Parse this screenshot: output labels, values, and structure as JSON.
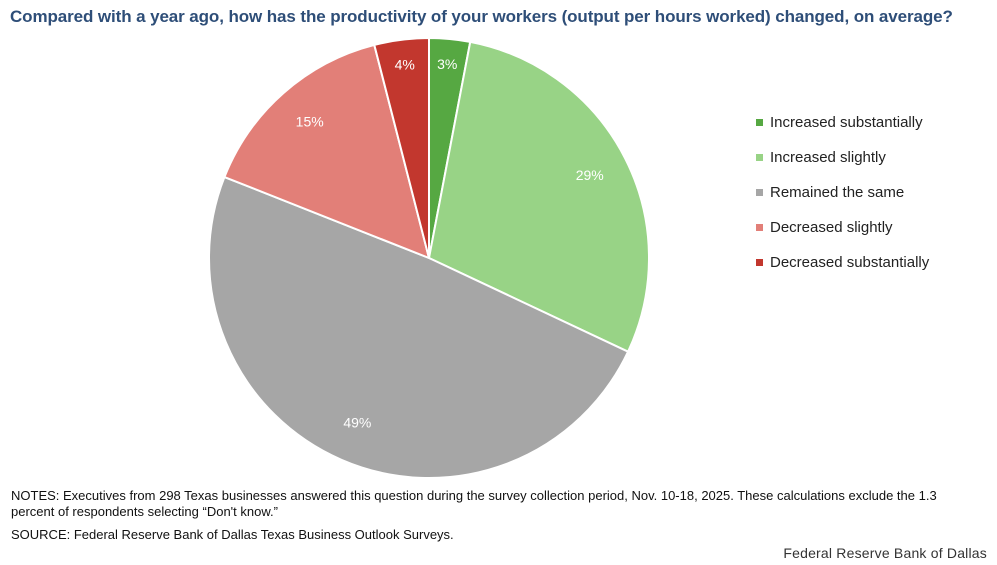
{
  "title": "Compared with a year ago, how has the productivity of your workers (output per hours worked) changed, on average?",
  "chart_data": {
    "type": "pie",
    "categories": [
      "Increased substantially",
      "Increased slightly",
      "Remained the same",
      "Decreased slightly",
      "Decreased substantially"
    ],
    "values": [
      3,
      29,
      49,
      15,
      4
    ],
    "labels": [
      "3%",
      "29%",
      "49%",
      "15%",
      "4%"
    ],
    "colors": [
      "#56a842",
      "#98d386",
      "#a6a6a6",
      "#e27f78",
      "#c2372e"
    ],
    "label_colors": [
      "#ffffff",
      "#ffffff",
      "#ffffff",
      "#ffffff",
      "#ffffff"
    ],
    "legend_position": "right"
  },
  "notes": "NOTES: Executives from 298 Texas businesses answered this question during the survey collection period, Nov. 10-18, 2025. These calculations exclude the 1.3 percent of respondents selecting “Don't know.”",
  "source": "SOURCE: Federal Reserve Bank of Dallas Texas Business Outlook Surveys.",
  "brand": "Federal Reserve Bank of Dallas"
}
